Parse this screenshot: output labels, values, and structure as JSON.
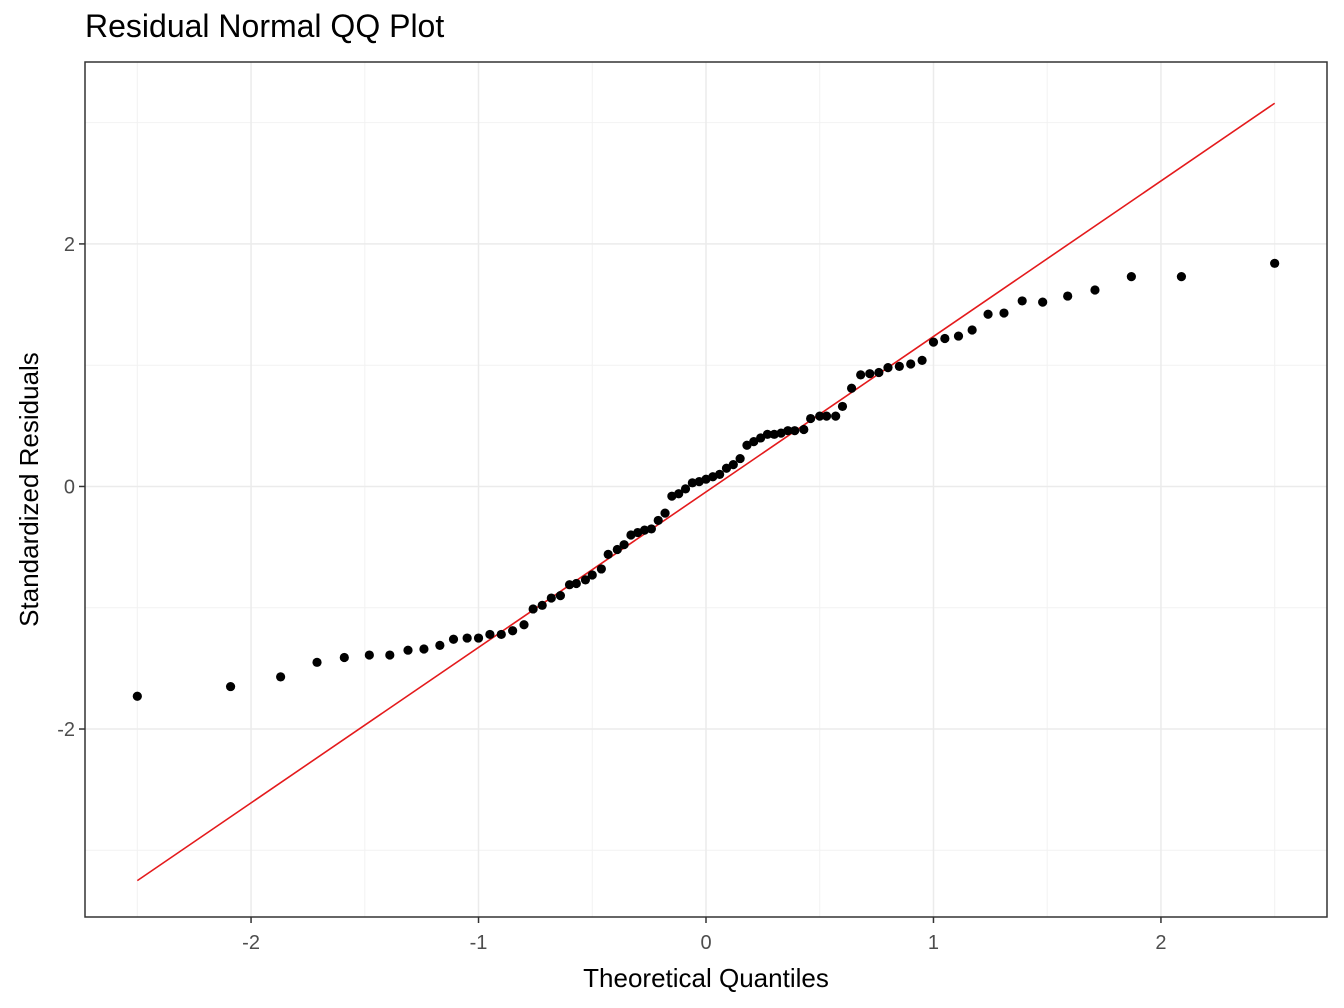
{
  "chart_data": {
    "type": "scatter",
    "title": "Residual Normal QQ Plot",
    "xlabel": "Theoretical Quantiles",
    "ylabel": "Standardized Residuals",
    "xlim": [
      -2.73,
      2.73
    ],
    "ylim": [
      -3.55,
      3.5
    ],
    "x_ticks": [
      -2,
      -1,
      0,
      1,
      2
    ],
    "x_tick_labels": [
      "-2",
      "-1",
      "0",
      "1",
      "2"
    ],
    "y_ticks": [
      -2,
      0,
      2
    ],
    "y_tick_labels": [
      "-2",
      "0",
      "2"
    ],
    "grid": true,
    "series": [
      {
        "color": "#000000",
        "points": [
          [
            -2.5,
            -1.73
          ],
          [
            -2.09,
            -1.65
          ],
          [
            -1.87,
            -1.57
          ],
          [
            -1.71,
            -1.45
          ],
          [
            -1.59,
            -1.41
          ],
          [
            -1.48,
            -1.39
          ],
          [
            -1.39,
            -1.39
          ],
          [
            -1.31,
            -1.35
          ],
          [
            -1.24,
            -1.34
          ],
          [
            -1.17,
            -1.31
          ],
          [
            -1.11,
            -1.26
          ],
          [
            -1.05,
            -1.25
          ],
          [
            -1.0,
            -1.25
          ],
          [
            -0.95,
            -1.22
          ],
          [
            -0.9,
            -1.22
          ],
          [
            -0.85,
            -1.19
          ],
          [
            -0.8,
            -1.14
          ],
          [
            -0.76,
            -1.01
          ],
          [
            -0.72,
            -0.98
          ],
          [
            -0.68,
            -0.92
          ],
          [
            -0.64,
            -0.9
          ],
          [
            -0.6,
            -0.81
          ],
          [
            -0.57,
            -0.8
          ],
          [
            -0.53,
            -0.77
          ],
          [
            -0.5,
            -0.73
          ],
          [
            -0.46,
            -0.68
          ],
          [
            -0.43,
            -0.56
          ],
          [
            -0.39,
            -0.52
          ],
          [
            -0.36,
            -0.48
          ],
          [
            -0.33,
            -0.4
          ],
          [
            -0.3,
            -0.38
          ],
          [
            -0.27,
            -0.36
          ],
          [
            -0.24,
            -0.35
          ],
          [
            -0.21,
            -0.28
          ],
          [
            -0.18,
            -0.22
          ],
          [
            -0.15,
            -0.08
          ],
          [
            -0.12,
            -0.06
          ],
          [
            -0.09,
            -0.02
          ],
          [
            -0.06,
            0.03
          ],
          [
            -0.03,
            0.04
          ],
          [
            0.0,
            0.06
          ],
          [
            0.03,
            0.08
          ],
          [
            0.06,
            0.1
          ],
          [
            0.09,
            0.15
          ],
          [
            0.12,
            0.18
          ],
          [
            0.15,
            0.23
          ],
          [
            0.18,
            0.34
          ],
          [
            0.21,
            0.37
          ],
          [
            0.24,
            0.4
          ],
          [
            0.27,
            0.43
          ],
          [
            0.3,
            0.43
          ],
          [
            0.33,
            0.44
          ],
          [
            0.36,
            0.46
          ],
          [
            0.39,
            0.46
          ],
          [
            0.43,
            0.47
          ],
          [
            0.46,
            0.56
          ],
          [
            0.5,
            0.58
          ],
          [
            0.53,
            0.58
          ],
          [
            0.57,
            0.58
          ],
          [
            0.6,
            0.66
          ],
          [
            0.64,
            0.81
          ],
          [
            0.68,
            0.92
          ],
          [
            0.72,
            0.93
          ],
          [
            0.76,
            0.94
          ],
          [
            0.8,
            0.98
          ],
          [
            0.85,
            0.99
          ],
          [
            0.9,
            1.01
          ],
          [
            0.95,
            1.04
          ],
          [
            1.0,
            1.19
          ],
          [
            1.05,
            1.22
          ],
          [
            1.11,
            1.24
          ],
          [
            1.17,
            1.29
          ],
          [
            1.24,
            1.42
          ],
          [
            1.31,
            1.43
          ],
          [
            1.39,
            1.53
          ],
          [
            1.48,
            1.52
          ],
          [
            1.59,
            1.57
          ],
          [
            1.71,
            1.62
          ],
          [
            1.87,
            1.73
          ],
          [
            2.09,
            1.73
          ],
          [
            2.5,
            1.84
          ]
        ]
      }
    ],
    "reference_line": {
      "color": "#e41a1c",
      "points": [
        [
          -2.5,
          -3.25
        ],
        [
          2.5,
          3.16
        ]
      ]
    }
  }
}
